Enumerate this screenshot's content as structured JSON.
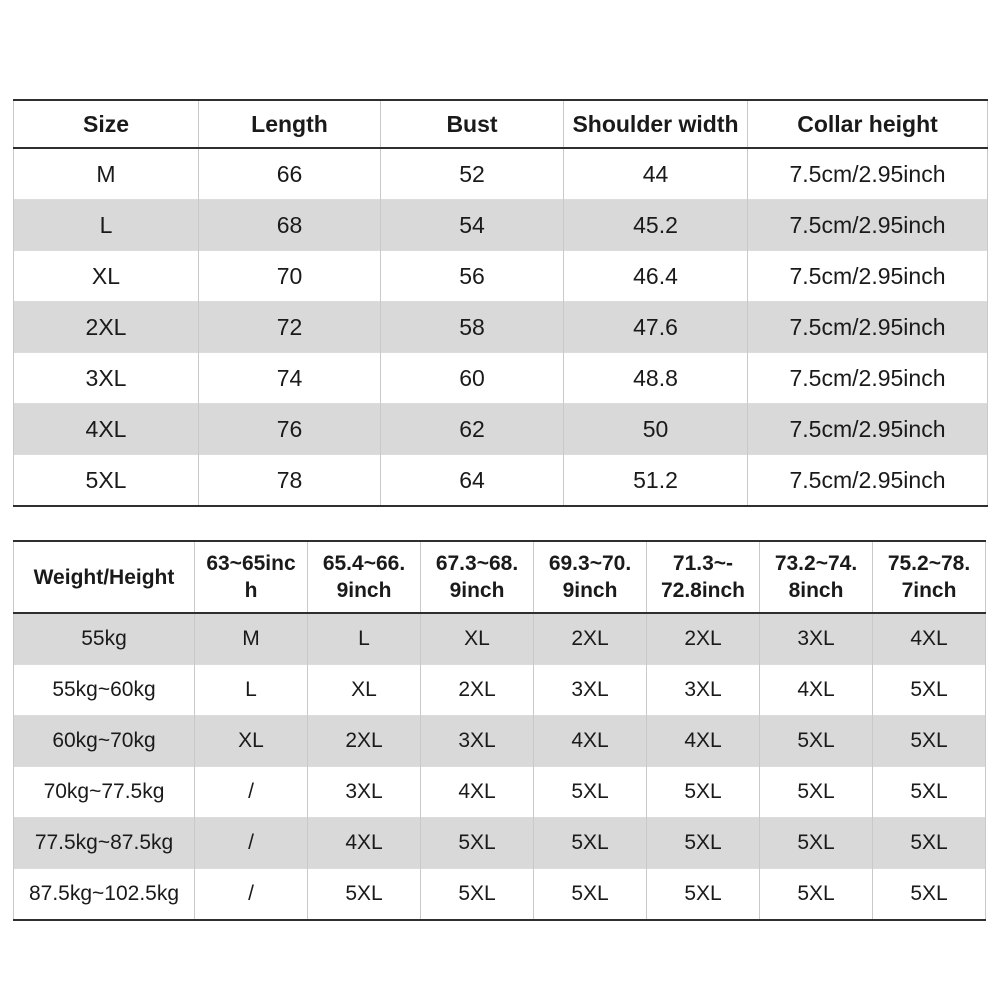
{
  "colors": {
    "background": "#ffffff",
    "stripe_gray": "#d9d9d9",
    "border_dark": "#2f2f2f",
    "border_light": "#c9c9c9",
    "text": "#1a1a1a"
  },
  "size_table": {
    "headers": [
      "Size",
      "Length",
      "Bust",
      "Shoulder width",
      "Collar height"
    ],
    "rows": [
      [
        "M",
        "66",
        "52",
        "44",
        "7.5cm/2.95inch"
      ],
      [
        "L",
        "68",
        "54",
        "45.2",
        "7.5cm/2.95inch"
      ],
      [
        "XL",
        "70",
        "56",
        "46.4",
        "7.5cm/2.95inch"
      ],
      [
        "2XL",
        "72",
        "58",
        "47.6",
        "7.5cm/2.95inch"
      ],
      [
        "3XL",
        "74",
        "60",
        "48.8",
        "7.5cm/2.95inch"
      ],
      [
        "4XL",
        "76",
        "62",
        "50",
        "7.5cm/2.95inch"
      ],
      [
        "5XL",
        "78",
        "64",
        "51.2",
        "7.5cm/2.95inch"
      ]
    ]
  },
  "weight_height_table": {
    "headers": [
      "Weight/Height",
      "63~65inc\nh",
      "65.4~66.\n9inch",
      "67.3~68.\n9inch",
      "69.3~70.\n9inch",
      "71.3~-\n72.8inch",
      "73.2~74.\n8inch",
      "75.2~78.\n7inch"
    ],
    "rows": [
      [
        "55kg",
        "M",
        "L",
        "XL",
        "2XL",
        "2XL",
        "3XL",
        "4XL"
      ],
      [
        "55kg~60kg",
        "L",
        "XL",
        "2XL",
        "3XL",
        "3XL",
        "4XL",
        "5XL"
      ],
      [
        "60kg~70kg",
        "XL",
        "2XL",
        "3XL",
        "4XL",
        "4XL",
        "5XL",
        "5XL"
      ],
      [
        "70kg~77.5kg",
        "/",
        "3XL",
        "4XL",
        "5XL",
        "5XL",
        "5XL",
        "5XL"
      ],
      [
        "77.5kg~87.5kg",
        "/",
        "4XL",
        "5XL",
        "5XL",
        "5XL",
        "5XL",
        "5XL"
      ],
      [
        "87.5kg~102.5kg",
        "/",
        "5XL",
        "5XL",
        "5XL",
        "5XL",
        "5XL",
        "5XL"
      ]
    ]
  }
}
